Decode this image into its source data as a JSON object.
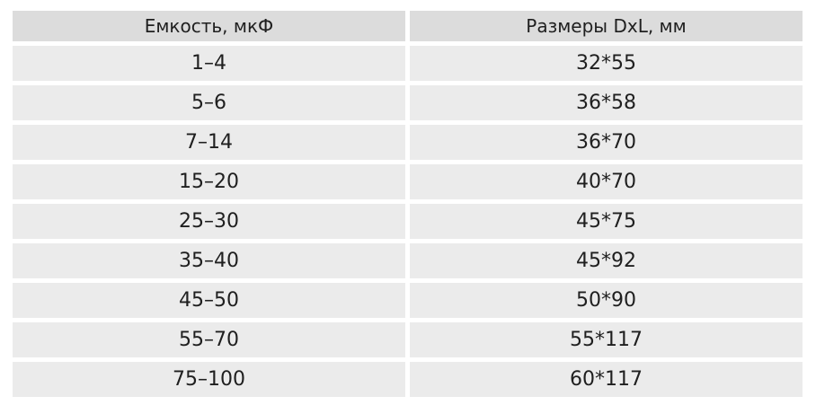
{
  "table": {
    "headers": [
      "Емкость, мкФ",
      "Размеры DxL, мм"
    ],
    "rows": [
      [
        "1–4",
        "32*55"
      ],
      [
        "5–6",
        "36*58"
      ],
      [
        "7–14",
        "36*70"
      ],
      [
        "15–20",
        "40*70"
      ],
      [
        "25–30",
        "45*75"
      ],
      [
        "35–40",
        "45*92"
      ],
      [
        "45–50",
        "50*90"
      ],
      [
        "55–70",
        "55*117"
      ],
      [
        "75–100",
        "60*117"
      ]
    ]
  },
  "colors": {
    "header_background": "#dcdcdc",
    "row_background": "#ebebeb",
    "text": "#1f1f1f"
  }
}
